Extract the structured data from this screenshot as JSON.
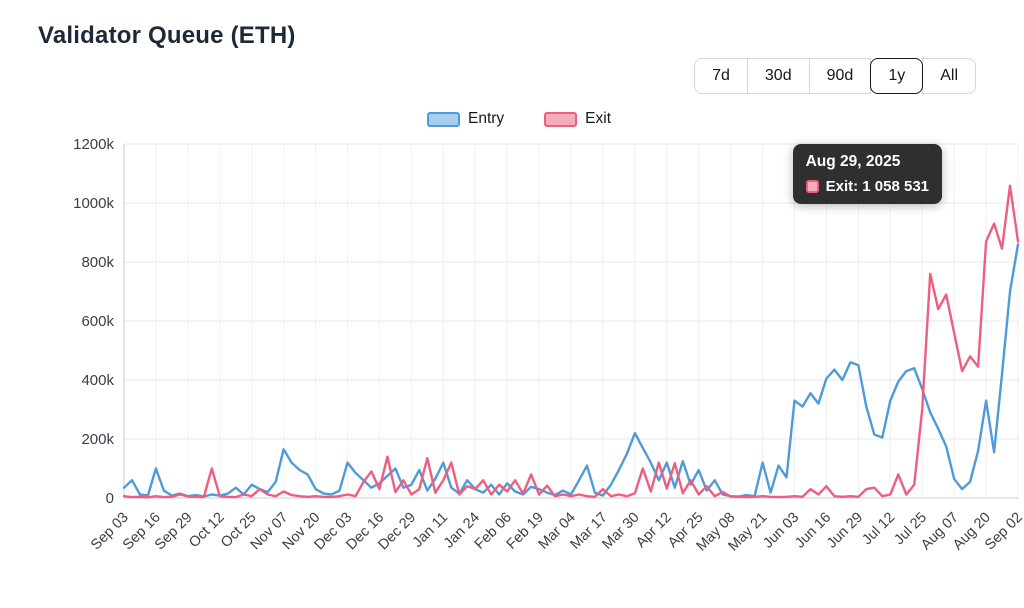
{
  "header": {
    "title": "Validator Queue (ETH)"
  },
  "time_range": {
    "selected": "1y",
    "options": [
      {
        "label": "7d"
      },
      {
        "label": "30d"
      },
      {
        "label": "90d"
      },
      {
        "label": "1y"
      },
      {
        "label": "All"
      }
    ]
  },
  "legend": {
    "items": [
      {
        "label": "Entry",
        "color": "#4f9ad9",
        "fill": "#a9cdee"
      },
      {
        "label": "Exit",
        "color": "#ed5f7e",
        "fill": "#f4abbc"
      }
    ]
  },
  "tooltip": {
    "date": "Aug 29, 2025",
    "text": "Exit: 1 058 531"
  },
  "chart_data": {
    "type": "line",
    "title": "Validator Queue (ETH)",
    "values_unit": "thousands of ETH (k)",
    "grid": true,
    "legend_position": "top",
    "ylim_k": [
      0,
      1200
    ],
    "y_tick_step_k": 200,
    "y_tick_labels": [
      "0",
      "200k",
      "400k",
      "600k",
      "800k",
      "1000k",
      "1200k"
    ],
    "points_per_interval": 4,
    "x_tick_labels": [
      "Sep 03",
      "Sep 16",
      "Sep 29",
      "Oct 12",
      "Oct 25",
      "Nov 07",
      "Nov 20",
      "Dec 03",
      "Dec 16",
      "Dec 29",
      "Jan 11",
      "Jan 24",
      "Feb 06",
      "Feb 19",
      "Mar 04",
      "Mar 17",
      "Mar 30",
      "Apr 12",
      "Apr 25",
      "May 08",
      "May 21",
      "Jun 03",
      "Jun 16",
      "Jun 29",
      "Jul 12",
      "Jul 25",
      "Aug 07",
      "Aug 20",
      "Sep 02"
    ],
    "series": [
      {
        "name": "Entry",
        "color": "#4f9ad9",
        "values_k": [
          35,
          60,
          12,
          8,
          100,
          25,
          8,
          15,
          6,
          10,
          5,
          12,
          8,
          15,
          35,
          12,
          45,
          30,
          20,
          55,
          165,
          120,
          95,
          80,
          30,
          15,
          12,
          25,
          120,
          85,
          60,
          35,
          50,
          75,
          100,
          35,
          45,
          95,
          25,
          65,
          120,
          35,
          15,
          60,
          30,
          18,
          45,
          12,
          50,
          22,
          12,
          38,
          30,
          18,
          10,
          25,
          12,
          60,
          110,
          18,
          8,
          45,
          95,
          150,
          220,
          170,
          120,
          60,
          120,
          35,
          125,
          45,
          95,
          25,
          60,
          12,
          6,
          5,
          10,
          6,
          120,
          18,
          110,
          70,
          330,
          310,
          355,
          320,
          405,
          435,
          400,
          460,
          450,
          310,
          215,
          205,
          330,
          395,
          430,
          440,
          370,
          290,
          235,
          175,
          65,
          30,
          55,
          160,
          330,
          155,
          420,
          700,
          860
        ]
      },
      {
        "name": "Exit",
        "color": "#ed5f7e",
        "values_k": [
          6,
          3,
          4,
          2,
          6,
          3,
          4,
          12,
          5,
          4,
          3,
          100,
          6,
          4,
          3,
          12,
          6,
          30,
          12,
          6,
          22,
          10,
          6,
          4,
          6,
          4,
          3,
          6,
          12,
          6,
          55,
          90,
          30,
          140,
          20,
          60,
          12,
          30,
          135,
          18,
          60,
          120,
          12,
          40,
          30,
          60,
          12,
          45,
          22,
          60,
          15,
          80,
          12,
          42,
          6,
          12,
          6,
          12,
          6,
          4,
          30,
          6,
          12,
          6,
          16,
          100,
          22,
          120,
          32,
          118,
          16,
          60,
          12,
          40,
          6,
          20,
          5,
          4,
          3,
          4,
          6,
          4,
          3,
          4,
          6,
          4,
          30,
          12,
          40,
          6,
          4,
          6,
          4,
          30,
          35,
          6,
          12,
          80,
          12,
          45,
          300,
          760,
          640,
          690,
          560,
          430,
          480,
          445,
          870,
          930,
          845,
          1058.5,
          870
        ]
      }
    ],
    "highlighted_point": {
      "series": "Exit",
      "x_label": "Aug 29, 2025",
      "value": 1058531
    }
  }
}
